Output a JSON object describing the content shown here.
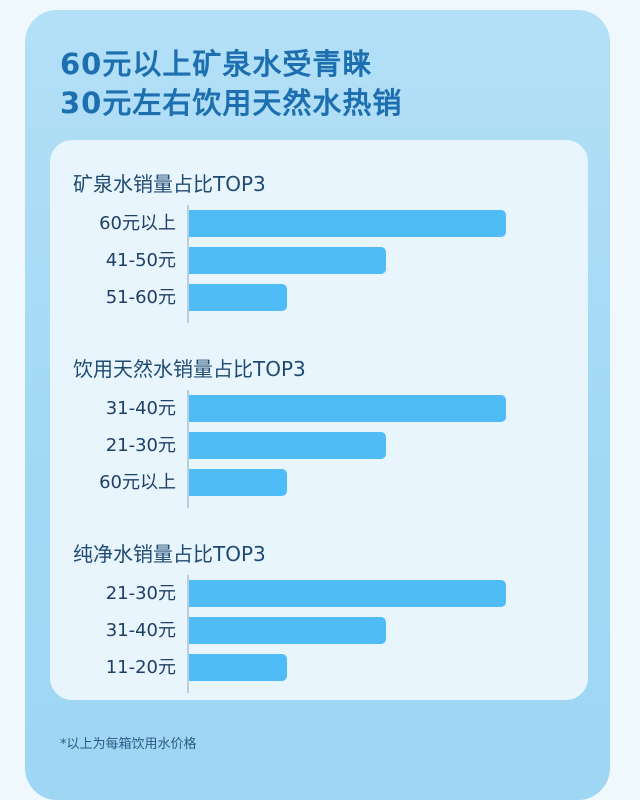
{
  "title": [
    "60元以上矿泉水受青睐",
    "30元左右饮用天然水热销"
  ],
  "note": "*以上为每箱饮用水价格",
  "colors": {
    "bar": "#4fbbf7",
    "title": "#1d6fb0",
    "background": "#a4d9f5",
    "panel": "#e8f5fd"
  },
  "chart_data": [
    {
      "type": "bar",
      "orientation": "horizontal",
      "title": "矿泉水销量占比TOP3",
      "categories": [
        "60元以上",
        "41-50元",
        "51-60元"
      ],
      "values": [
        100,
        62,
        31
      ],
      "grid": false
    },
    {
      "type": "bar",
      "orientation": "horizontal",
      "title": "饮用天然水销量占比TOP3",
      "categories": [
        "31-40元",
        "21-30元",
        "60元以上"
      ],
      "values": [
        100,
        62,
        31
      ],
      "grid": false
    },
    {
      "type": "bar",
      "orientation": "horizontal",
      "title": "纯净水销量占比TOP3",
      "categories": [
        "21-30元",
        "31-40元",
        "11-20元"
      ],
      "values": [
        100,
        62,
        31
      ],
      "grid": false
    }
  ]
}
